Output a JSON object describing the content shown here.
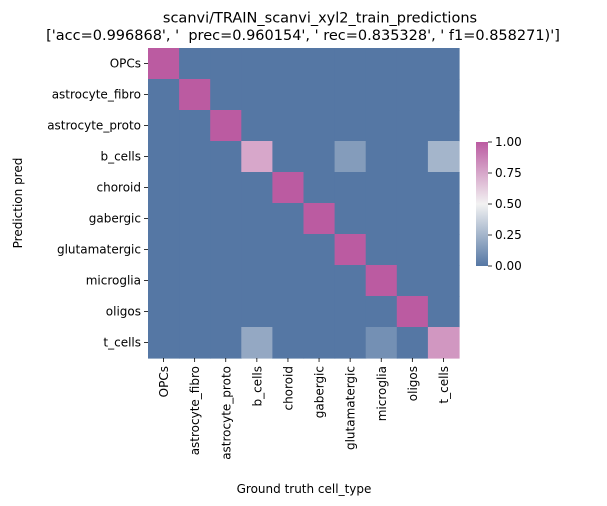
{
  "chart_data": {
    "type": "heatmap",
    "title": "scanvi/TRAIN_scanvi_xyl2_train_predictions",
    "subtitle": "['acc=0.996868', '  prec=0.960154', ' rec=0.835328', ' f1=0.858271)']",
    "xlabel": "Ground truth cell_type",
    "ylabel": "Prediction pred",
    "x_categories": [
      "OPCs",
      "astrocyte_fibro",
      "astrocyte_proto",
      "b_cells",
      "choroid",
      "gabergic",
      "glutamatergic",
      "microglia",
      "oligos",
      "t_cells"
    ],
    "y_categories": [
      "OPCs",
      "astrocyte_fibro",
      "astrocyte_proto",
      "b_cells",
      "choroid",
      "gabergic",
      "glutamatergic",
      "microglia",
      "oligos",
      "t_cells"
    ],
    "values": [
      [
        1.0,
        0,
        0,
        0,
        0,
        0,
        0,
        0,
        0,
        0
      ],
      [
        0,
        1.0,
        0,
        0,
        0,
        0,
        0,
        0,
        0,
        0
      ],
      [
        0,
        0,
        1.0,
        0,
        0,
        0,
        0,
        0,
        0,
        0
      ],
      [
        0,
        0,
        0,
        0.75,
        0,
        0,
        0.15,
        0,
        0,
        0.25
      ],
      [
        0,
        0,
        0,
        0,
        1.0,
        0,
        0,
        0,
        0,
        0
      ],
      [
        0,
        0,
        0,
        0,
        0,
        1.0,
        0,
        0,
        0,
        0
      ],
      [
        0,
        0,
        0,
        0,
        0,
        0,
        1.0,
        0,
        0,
        0
      ],
      [
        0,
        0,
        0,
        0,
        0,
        0,
        0,
        1.0,
        0,
        0
      ],
      [
        0,
        0,
        0,
        0,
        0,
        0,
        0,
        0,
        1.0,
        0
      ],
      [
        0,
        0,
        0,
        0.2,
        0,
        0,
        0,
        0.1,
        0,
        0.8
      ]
    ],
    "colorbar": {
      "range": [
        0,
        1
      ],
      "ticks": [
        "0.00",
        "0.25",
        "0.50",
        "0.75",
        "1.00"
      ],
      "colors": [
        "#5577a4",
        "#f2f2f2",
        "#bb5ba1"
      ]
    }
  }
}
